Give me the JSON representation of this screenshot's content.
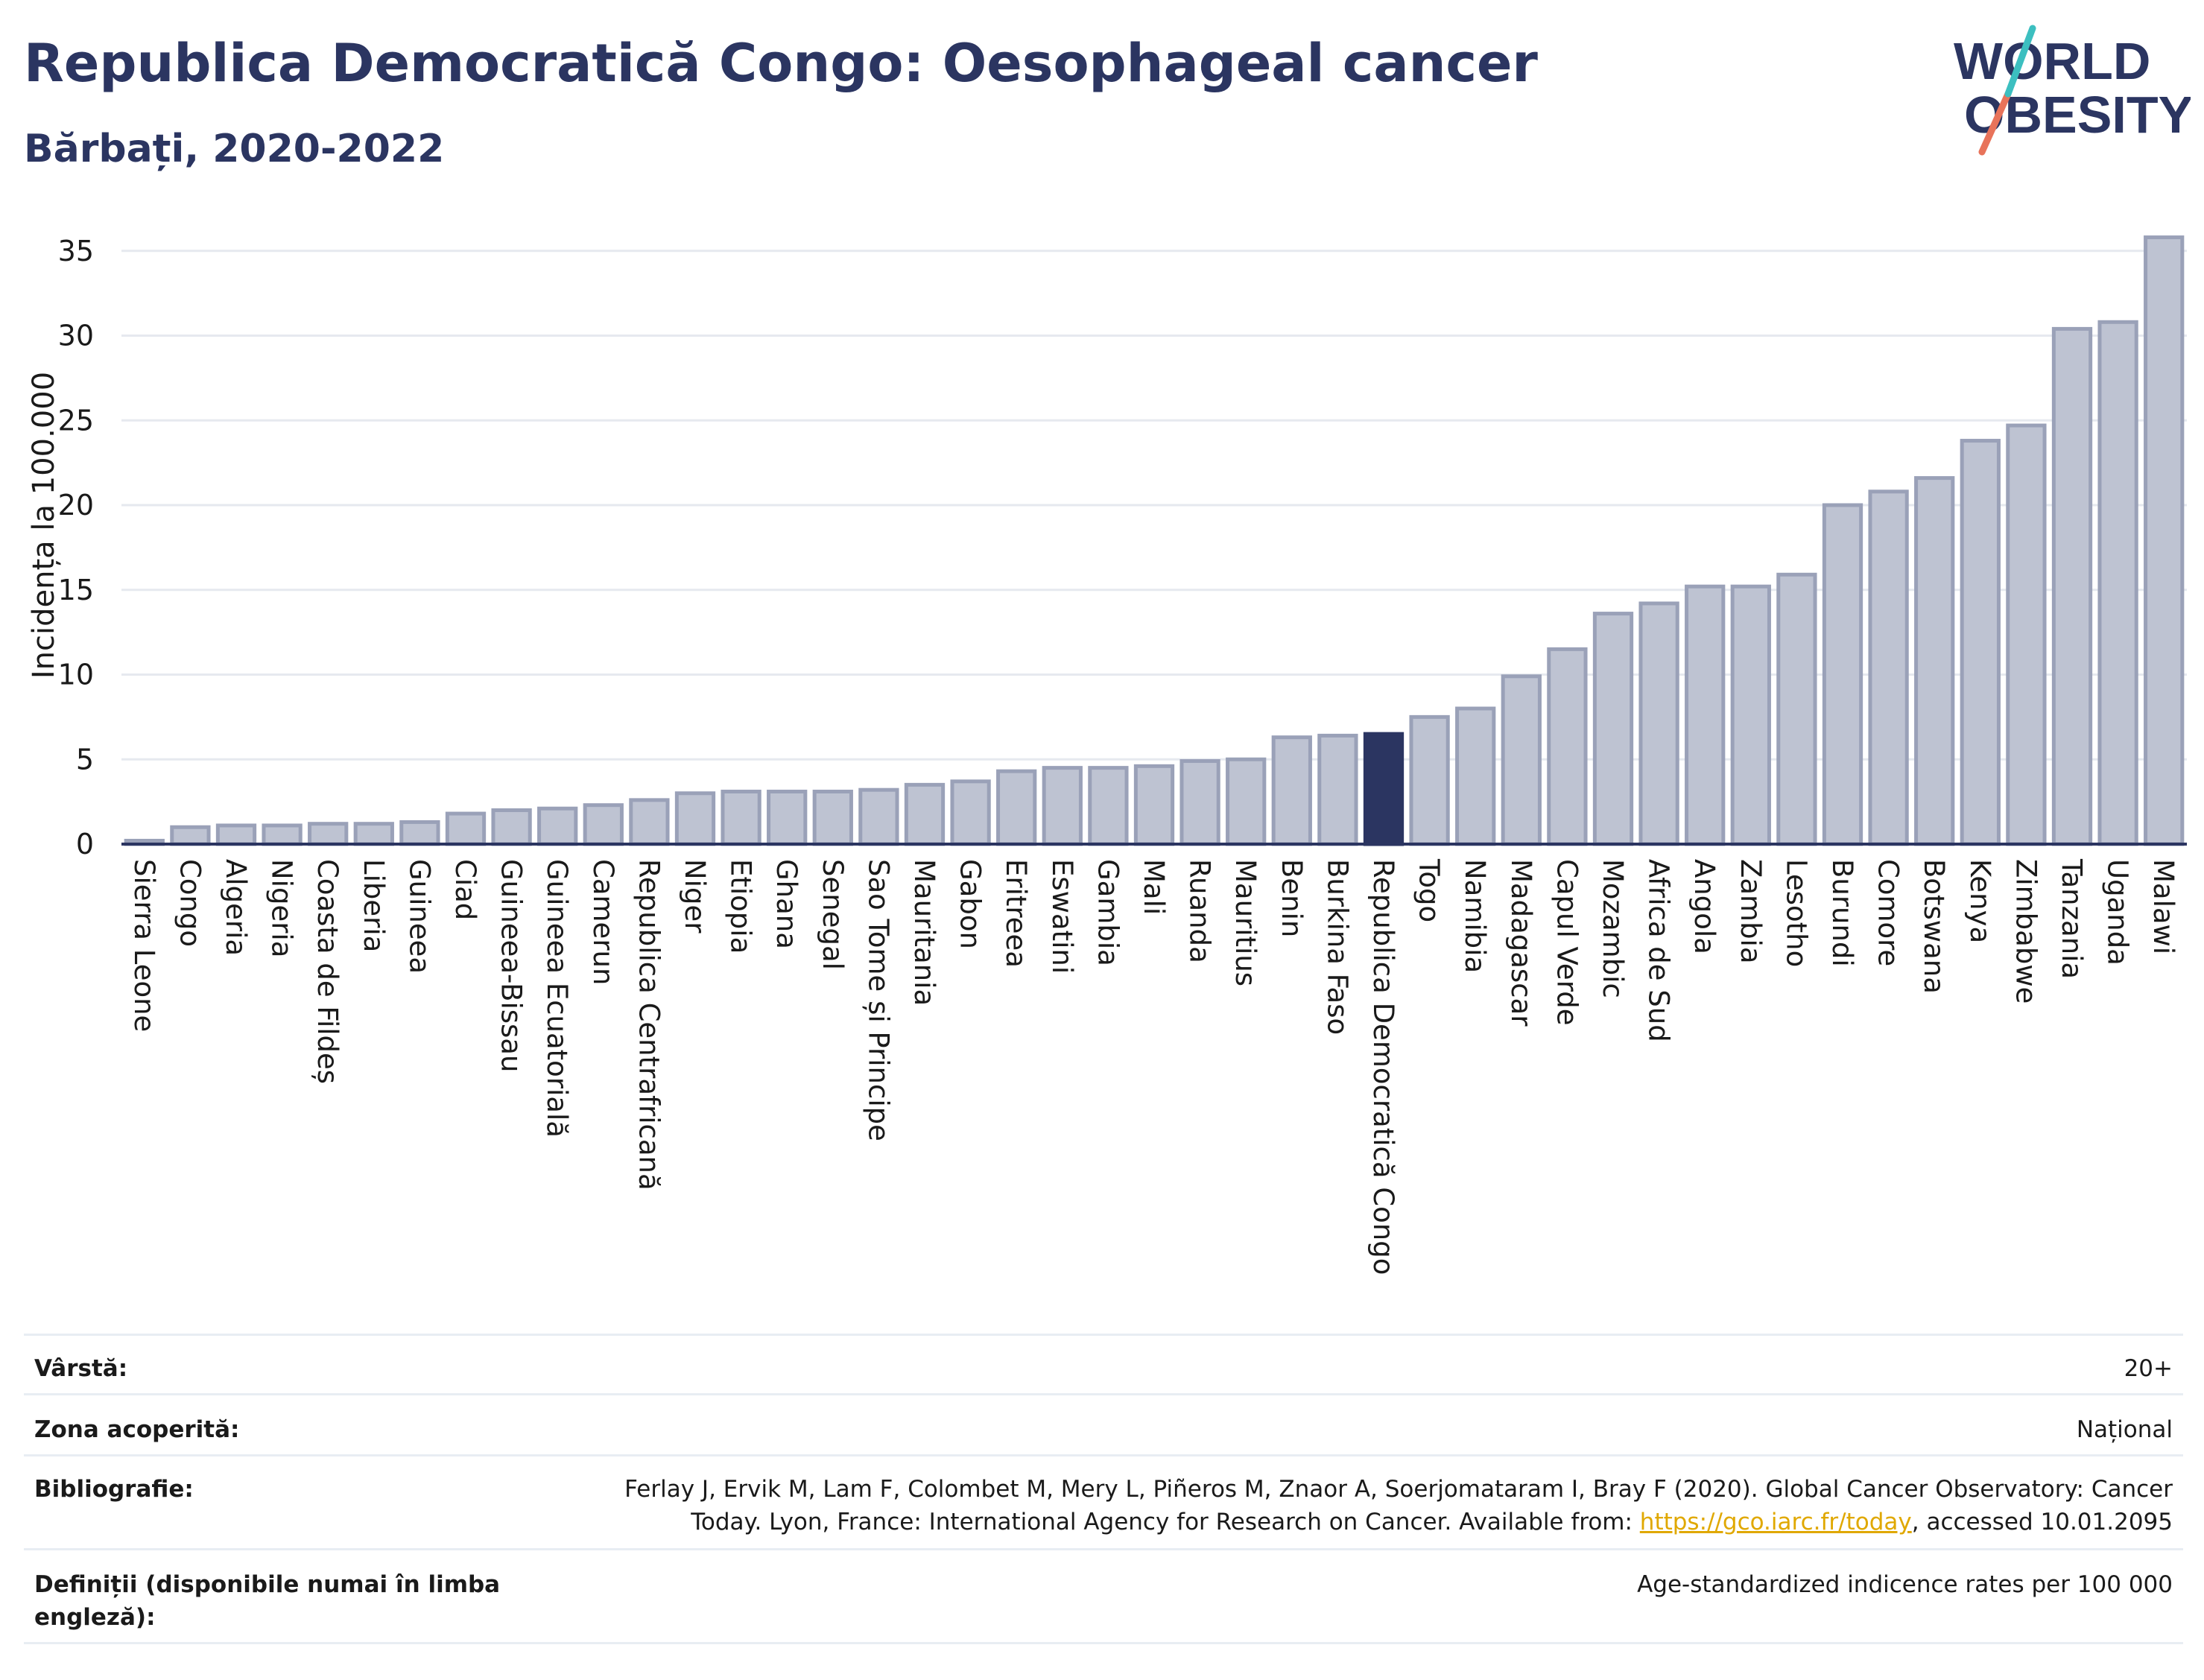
{
  "header": {
    "title": "Republica Democratică Congo: Oesophageal cancer",
    "subtitle": "Bărbați, 2020-2022"
  },
  "logo": {
    "line1": "WORLD",
    "line2": "OBESITY"
  },
  "colors": {
    "bar": "#bec3d2",
    "bar_stroke": "#9aa1b8",
    "highlight": "#2b3561",
    "grid": "#e6e9ef",
    "axis": "#2b3561",
    "logo_teal": "#3cbfc0",
    "logo_coral": "#e8735a"
  },
  "chart_data": {
    "type": "bar",
    "ylabel": "Incidența la 100.000",
    "ylim": [
      0,
      36
    ],
    "yticks": [
      0,
      5,
      10,
      15,
      20,
      25,
      30,
      35
    ],
    "grid": true,
    "highlight_category": "Republica Democratică Congo",
    "categories": [
      "Sierra Leone",
      "Congo",
      "Algeria",
      "Nigeria",
      "Coasta de Fildeș",
      "Liberia",
      "Guineea",
      "Ciad",
      "Guineea-Bissau",
      "Guineea Ecuatorială",
      "Camerun",
      "Republica Centrafricană",
      "Niger",
      "Etiopia",
      "Ghana",
      "Senegal",
      "Sao Tome și Principe",
      "Mauritania",
      "Gabon",
      "Eritreea",
      "Eswatini",
      "Gambia",
      "Mali",
      "Ruanda",
      "Mauritius",
      "Benin",
      "Burkina Faso",
      "Republica Democratică Congo",
      "Togo",
      "Namibia",
      "Madagascar",
      "Capul Verde",
      "Mozambic",
      "Africa de Sud",
      "Angola",
      "Zambia",
      "Lesotho",
      "Burundi",
      "Comore",
      "Botswana",
      "Kenya",
      "Zimbabwe",
      "Tanzania",
      "Uganda",
      "Malawi"
    ],
    "values": [
      0.2,
      1.0,
      1.1,
      1.1,
      1.2,
      1.2,
      1.3,
      1.8,
      2.0,
      2.1,
      2.3,
      2.6,
      3.0,
      3.1,
      3.1,
      3.1,
      3.2,
      3.5,
      3.7,
      4.3,
      4.5,
      4.5,
      4.6,
      4.9,
      5.0,
      6.3,
      6.4,
      6.5,
      7.5,
      8.0,
      9.9,
      11.5,
      13.6,
      14.2,
      15.2,
      15.2,
      15.9,
      20.0,
      20.8,
      21.6,
      23.8,
      24.7,
      30.4,
      30.8,
      35.8
    ]
  },
  "info": {
    "age_label": "Vârstă:",
    "age_value": "20+",
    "coverage_label": "Zona acoperită:",
    "coverage_value": "Național",
    "bibliography_label": "Bibliografie:",
    "bibliography_line1": "Ferlay J, Ervik M, Lam F, Colombet M, Mery L, Piñeros M, Znaor A, Soerjomataram I, Bray F (2020). Global Cancer Observatory: Cancer",
    "bibliography_line2_pre": "Today. Lyon, France: International Agency for Research on Cancer. Available from: ",
    "bibliography_link": "https://gco.iarc.fr/today",
    "bibliography_line2_post": ", accessed 10.01.2095",
    "definitions_label": "Definiții (disponibile numai în limba engleză):",
    "definitions_value": "Age-standardized indicence rates per 100 000"
  }
}
